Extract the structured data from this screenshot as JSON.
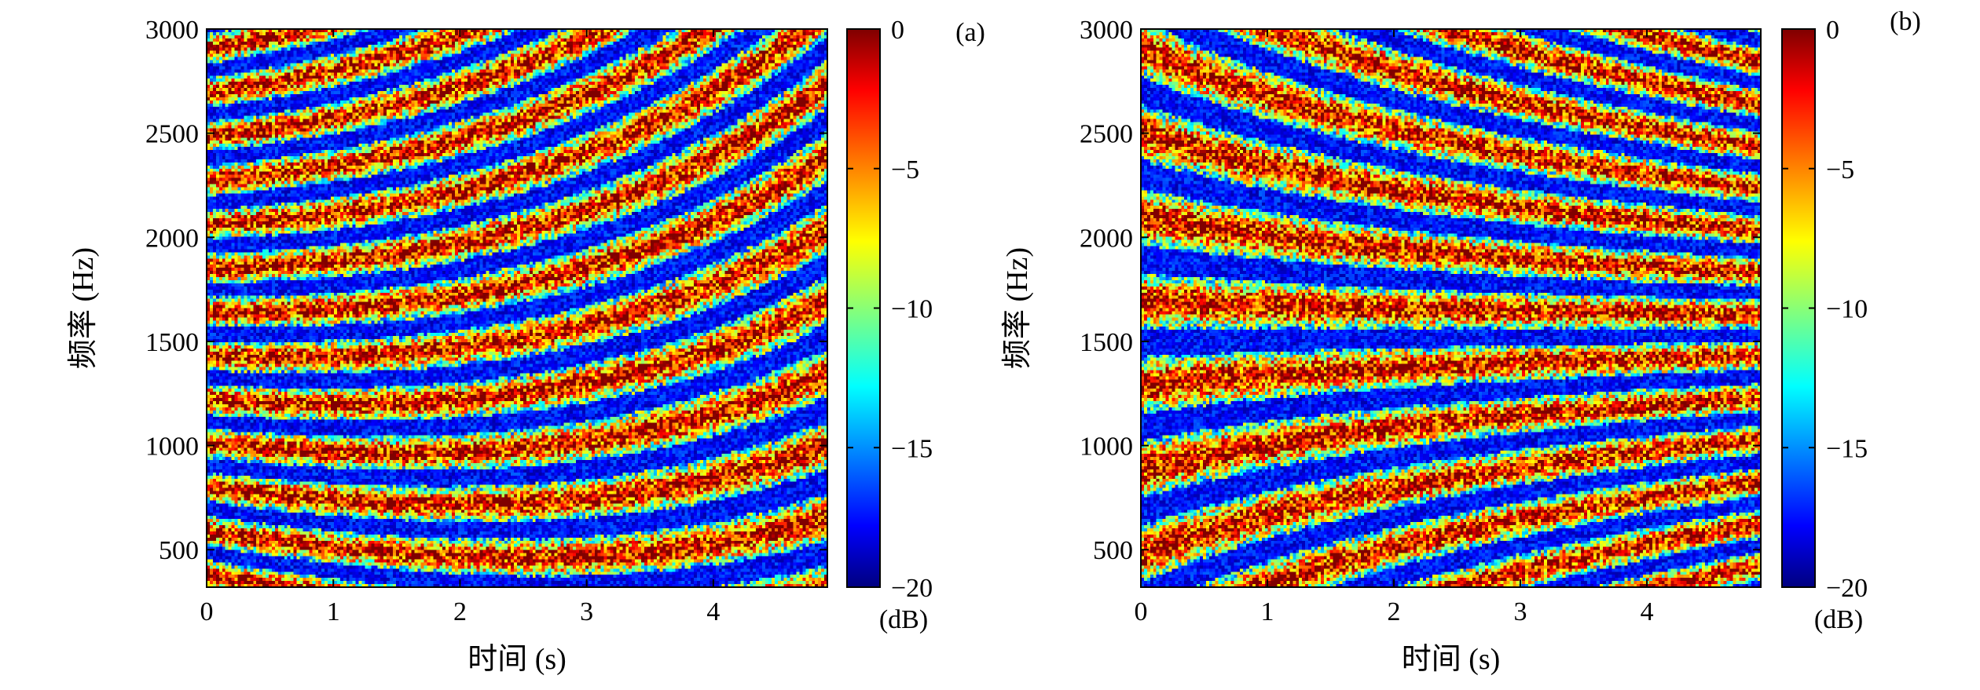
{
  "chart_data": [
    {
      "panel_label": "(a)",
      "type": "heatmap",
      "xlabel": "时间 (s)",
      "ylabel": "频率 (Hz)",
      "xlim": [
        0,
        4.9
      ],
      "ylim": [
        320,
        3000
      ],
      "x_ticks": [
        0,
        1,
        2,
        3,
        4
      ],
      "y_ticks": [
        500,
        1000,
        1500,
        2000,
        2500,
        3000
      ],
      "colorbar": {
        "ticks": [
          0,
          -5,
          -10,
          -15,
          -20
        ],
        "range": [
          -20,
          0
        ],
        "unit": "(dB)",
        "colormap": "jet"
      },
      "striation_trend": "decreasing-range",
      "striation_curvature": 0.35
    },
    {
      "panel_label": "(b)",
      "type": "heatmap",
      "xlabel": "时间 (s)",
      "ylabel": "频率 (Hz)",
      "xlim": [
        0,
        4.9
      ],
      "ylim": [
        320,
        3000
      ],
      "x_ticks": [
        0,
        1,
        2,
        3,
        4
      ],
      "y_ticks": [
        500,
        1000,
        1500,
        2000,
        2500,
        3000
      ],
      "colorbar": {
        "ticks": [
          0,
          -5,
          -10,
          -15,
          -20
        ],
        "range": [
          -20,
          0
        ],
        "unit": "(dB)",
        "colormap": "jet"
      },
      "striation_trend": "increasing-range",
      "striation_curvature": 0.35
    }
  ]
}
